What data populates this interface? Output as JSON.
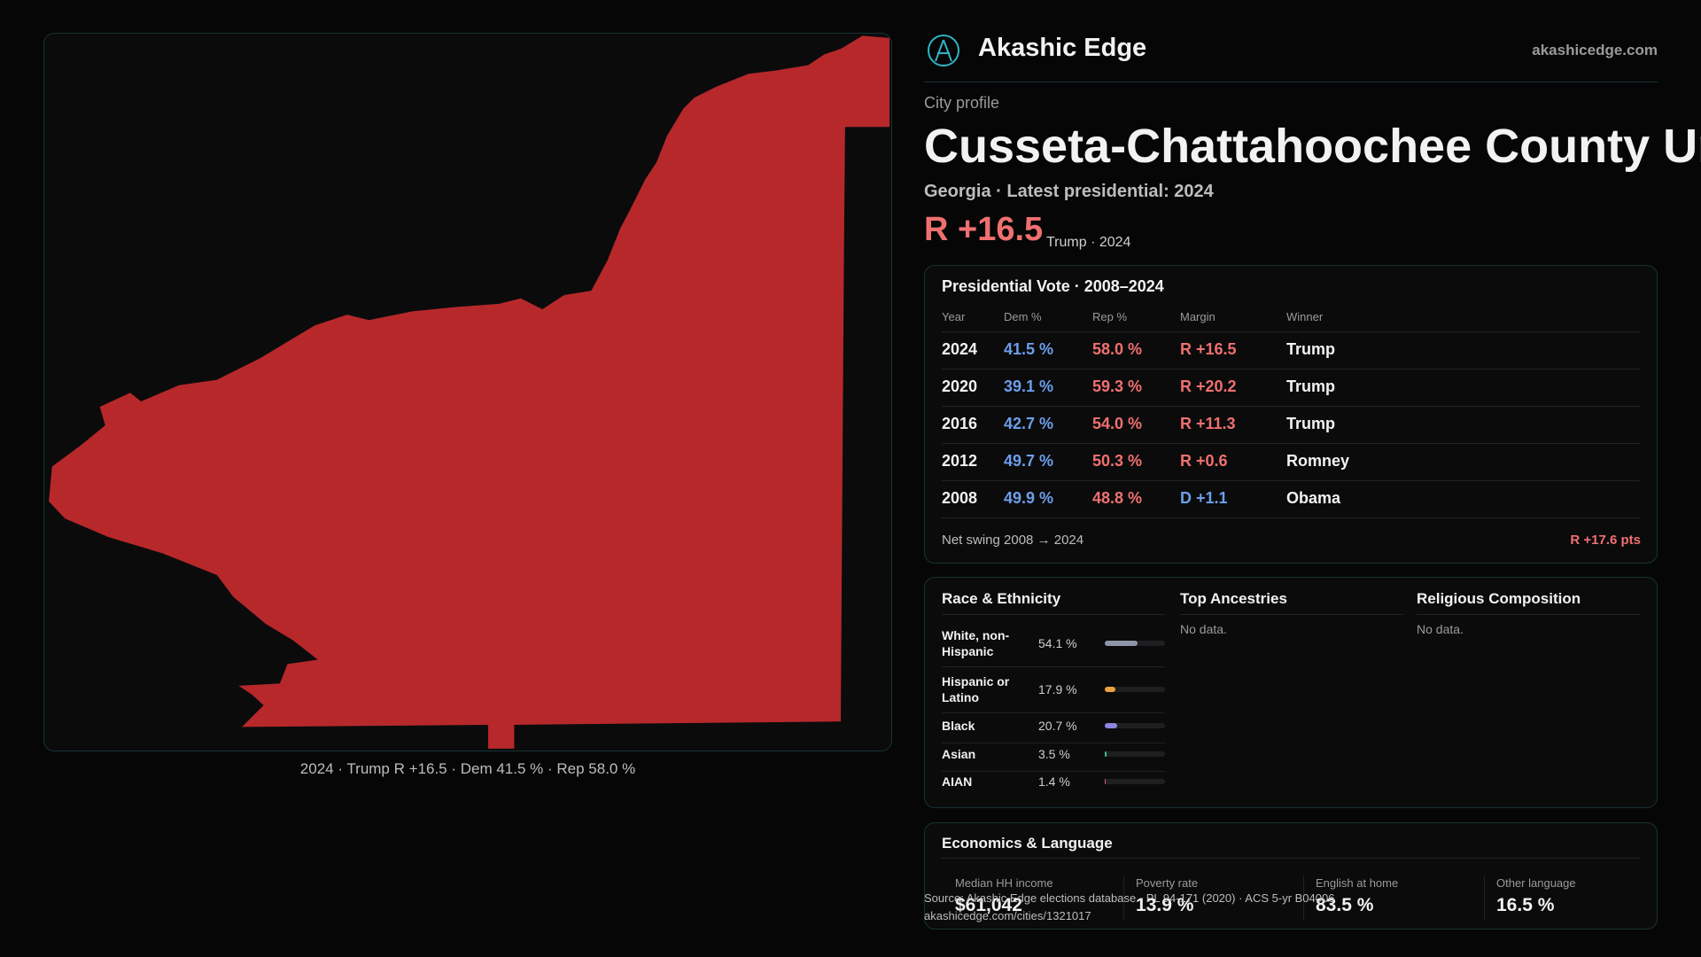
{
  "header": {
    "brand": "Akashic Edge",
    "site": "akashicedge.com"
  },
  "profile": {
    "kicker": "City profile",
    "title": "Cusseta-Chattahoochee County Un",
    "subtitle": "Georgia · Latest presidential: 2024",
    "margin": "R +16.5",
    "margin_note": "Trump · 2024"
  },
  "map": {
    "caption": "2024 · Trump R +16.5 · Dem 41.5 % · Rep 58.0 %"
  },
  "votes": {
    "title": "Presidential Vote · 2008–2024",
    "columns": [
      "Year",
      "Dem %",
      "Rep %",
      "Margin",
      "Winner"
    ],
    "rows": [
      [
        "2024",
        "41.5 %",
        "58.0 %",
        "R +16.5",
        "Trump"
      ],
      [
        "2020",
        "39.1 %",
        "59.3 %",
        "R +20.2",
        "Trump"
      ],
      [
        "2016",
        "42.7 %",
        "54.0 %",
        "R +11.3",
        "Trump"
      ],
      [
        "2012",
        "49.7 %",
        "50.3 %",
        "R +0.6",
        "Romney"
      ],
      [
        "2008",
        "49.9 %",
        "48.8 %",
        "D +1.1",
        "Obama"
      ]
    ],
    "swing_label": "Net swing 2008 → 2024",
    "swing_value": "R +17.6 pts"
  },
  "race": {
    "title": "Race & Ethnicity",
    "labels": [
      "White, non-Hispanic",
      "Hispanic or Latino",
      "Black",
      "Asian",
      "AIAN"
    ],
    "values": [
      54.1,
      17.9,
      20.7,
      3.5,
      1.4
    ],
    "value_labels": [
      "54.1 %",
      "17.9 %",
      "20.7 %",
      "3.5 %",
      "1.4 %"
    ],
    "colors": [
      "#8f95a8",
      "#e8a33d",
      "#8c84e0",
      "#3fbf8f",
      "#d9607a"
    ],
    "scale_max": 100
  },
  "ancestries": {
    "title": "Top Ancestries",
    "note": "No data."
  },
  "religion": {
    "title": "Religious Composition",
    "note": "No data."
  },
  "economics": {
    "title": "Economics & Language",
    "labels": [
      "Median HH income",
      "Poverty rate",
      "English at home",
      "Other language"
    ],
    "values": [
      "$61,042",
      "13.9 %",
      "83.5 %",
      "16.5 %"
    ]
  },
  "footer": {
    "source": "Source: Akashic Edge elections database · PL 94-171 (2020) · ACS 5-yr B04006",
    "url": "akashicedge.com/cities/1321017"
  }
}
